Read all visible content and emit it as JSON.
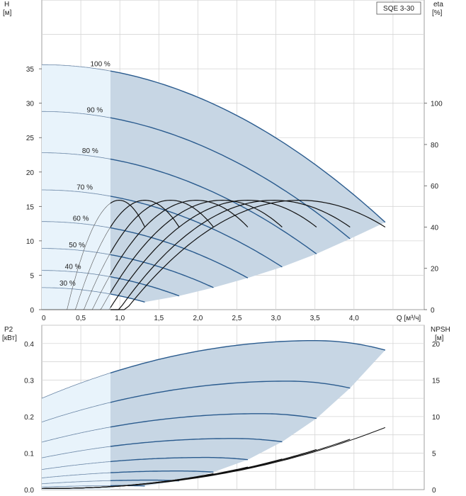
{
  "chart_data": [
    {
      "type": "line",
      "title": "SQE 3-30",
      "xlabel": "Q [м³/ч]",
      "ylabel": "H\n[м]",
      "y2label": "eta\n[%]",
      "xlim": [
        0,
        4.9
      ],
      "ylim": [
        0,
        45
      ],
      "y2lim": [
        0,
        150
      ],
      "x_ticks": [
        "0",
        "0,5",
        "1,0",
        "1,5",
        "2,0",
        "2,5",
        "3,0",
        "3,5",
        "4,0",
        "Q [м³/ч]"
      ],
      "y_ticks": [
        "0",
        "5",
        "10",
        "15",
        "20",
        "25",
        "30",
        "35"
      ],
      "y2_ticks": [
        "0",
        "20",
        "40",
        "60",
        "80",
        "100"
      ],
      "shaded_region": "operating range",
      "head_series": [
        {
          "name": "100 %",
          "q_end": 4.4,
          "h0": 35.6,
          "h_end": 12.7
        },
        {
          "name": "90 %",
          "q_end": 3.95,
          "h0": 28.8,
          "h_end": 10.3
        },
        {
          "name": "80 %",
          "q_end": 3.52,
          "h0": 22.8,
          "h_end": 8.1
        },
        {
          "name": "70 %",
          "q_end": 3.08,
          "h0": 17.4,
          "h_end": 6.2
        },
        {
          "name": "60 %",
          "q_end": 2.64,
          "h0": 12.8,
          "h_end": 4.6
        },
        {
          "name": "50 %",
          "q_end": 2.2,
          "h0": 8.9,
          "h_end": 3.2
        },
        {
          "name": "40 %",
          "q_end": 1.76,
          "h0": 5.7,
          "h_end": 2.0
        },
        {
          "name": "30 %",
          "q_end": 1.32,
          "h0": 3.2,
          "h_end": 1.1
        }
      ],
      "efficiency_series": [
        {
          "name": "100 %",
          "q_end": 4.4,
          "peak_q": 3.3,
          "peak_eta": 53,
          "end_eta": 40
        },
        {
          "name": "90 %",
          "q_end": 3.95,
          "peak_q": 2.97,
          "peak_eta": 53,
          "end_eta": 40
        },
        {
          "name": "80 %",
          "q_end": 3.52,
          "peak_q": 2.64,
          "peak_eta": 53,
          "end_eta": 40
        },
        {
          "name": "70 %",
          "q_end": 3.08,
          "peak_q": 2.31,
          "peak_eta": 53,
          "end_eta": 40
        },
        {
          "name": "60 %",
          "q_end": 2.64,
          "peak_q": 1.98,
          "peak_eta": 53,
          "end_eta": 40
        },
        {
          "name": "50 %",
          "q_end": 2.2,
          "peak_q": 1.65,
          "peak_eta": 53,
          "end_eta": 40
        },
        {
          "name": "40 %",
          "q_end": 1.76,
          "peak_q": 1.32,
          "peak_eta": 53,
          "end_eta": 40
        },
        {
          "name": "30 %",
          "q_end": 1.32,
          "peak_q": 0.99,
          "peak_eta": 53,
          "end_eta": 40
        }
      ]
    },
    {
      "type": "line",
      "xlabel": "Q [м³/ч]",
      "ylabel": "P2\n[кВт]",
      "y2label": "NPSH\n[м]",
      "xlim": [
        0,
        4.9
      ],
      "ylim": [
        0,
        0.45
      ],
      "y2lim": [
        0,
        22.5
      ],
      "y_ticks": [
        "0.0",
        "0.1",
        "0.2",
        "0.3",
        "0.4"
      ],
      "y2_ticks": [
        "0",
        "5",
        "10",
        "15",
        "20"
      ],
      "power_series": [
        {
          "name": "100 %",
          "q_end": 4.4,
          "p0": 0.25,
          "peak_q": 3.5,
          "peak_p": 0.408,
          "p_end": 0.382
        },
        {
          "name": "90 %",
          "q_end": 3.95,
          "p0": 0.185,
          "peak_q": 3.15,
          "peak_p": 0.297,
          "p_end": 0.278
        },
        {
          "name": "80 %",
          "q_end": 3.52,
          "p0": 0.13,
          "peak_q": 2.8,
          "peak_p": 0.208,
          "p_end": 0.195
        },
        {
          "name": "70 %",
          "q_end": 3.08,
          "p0": 0.087,
          "peak_q": 2.45,
          "peak_p": 0.14,
          "p_end": 0.131
        },
        {
          "name": "60 %",
          "q_end": 2.64,
          "p0": 0.055,
          "peak_q": 2.1,
          "peak_p": 0.088,
          "p_end": 0.082
        },
        {
          "name": "50 %",
          "q_end": 2.2,
          "p0": 0.032,
          "peak_q": 1.75,
          "peak_p": 0.051,
          "p_end": 0.048
        },
        {
          "name": "40 %",
          "q_end": 1.76,
          "p0": 0.016,
          "peak_q": 1.4,
          "peak_p": 0.026,
          "p_end": 0.024
        },
        {
          "name": "30 %",
          "q_end": 1.32,
          "p0": 0.007,
          "peak_q": 1.05,
          "peak_p": 0.011,
          "p_end": 0.01
        }
      ],
      "npsh_series": [
        {
          "name": "100 %",
          "q_end": 4.4,
          "npsh_end": 8.5
        },
        {
          "name": "90 %",
          "q_end": 3.95,
          "npsh_end": 6.9
        },
        {
          "name": "80 %",
          "q_end": 3.52,
          "npsh_end": 5.5
        },
        {
          "name": "70 %",
          "q_end": 3.08,
          "npsh_end": 4.2
        },
        {
          "name": "60 %",
          "q_end": 2.64,
          "npsh_end": 3.1
        },
        {
          "name": "50 %",
          "q_end": 2.2,
          "npsh_end": 2.2
        },
        {
          "name": "40 %",
          "q_end": 1.76,
          "npsh_end": 1.4
        },
        {
          "name": "30 %",
          "q_end": 1.32,
          "npsh_end": 0.8
        }
      ]
    }
  ],
  "colors": {
    "head_line": "#2a5b8e",
    "fill": "#c7d6e4",
    "fill_light": "#e8f3fb",
    "grid": "#d6d6d6",
    "eta_line": "#111111",
    "minor_line": "#6a86a6"
  }
}
